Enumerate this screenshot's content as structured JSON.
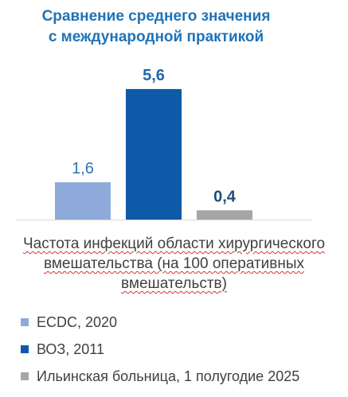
{
  "chart_data": {
    "type": "bar",
    "title_lines": [
      "Сравнение среднего значения",
      "с международной практикой"
    ],
    "xlabel_lines": [
      "Частота инфекций области хирургического",
      "вмешательства (на 100 оперативных",
      "вмешательств)"
    ],
    "ylabel": "",
    "ylim": [
      0,
      6
    ],
    "grid": false,
    "legend_position": "bottom",
    "series": [
      {
        "name": "ECDC, 2020",
        "value": 1.6,
        "label": "1,6",
        "color": "#8eaadb",
        "label_color": "#2e74b5"
      },
      {
        "name": "ВОЗ, 2011",
        "value": 5.6,
        "label": "5,6",
        "color": "#0e5aa8",
        "label_color": "#1f66ad"
      },
      {
        "name": "Ильинская больница, 1 полугодие 2025",
        "value": 0.4,
        "label": "0,4",
        "color": "#a6a6a6",
        "label_color": "#1f4e79"
      }
    ]
  }
}
